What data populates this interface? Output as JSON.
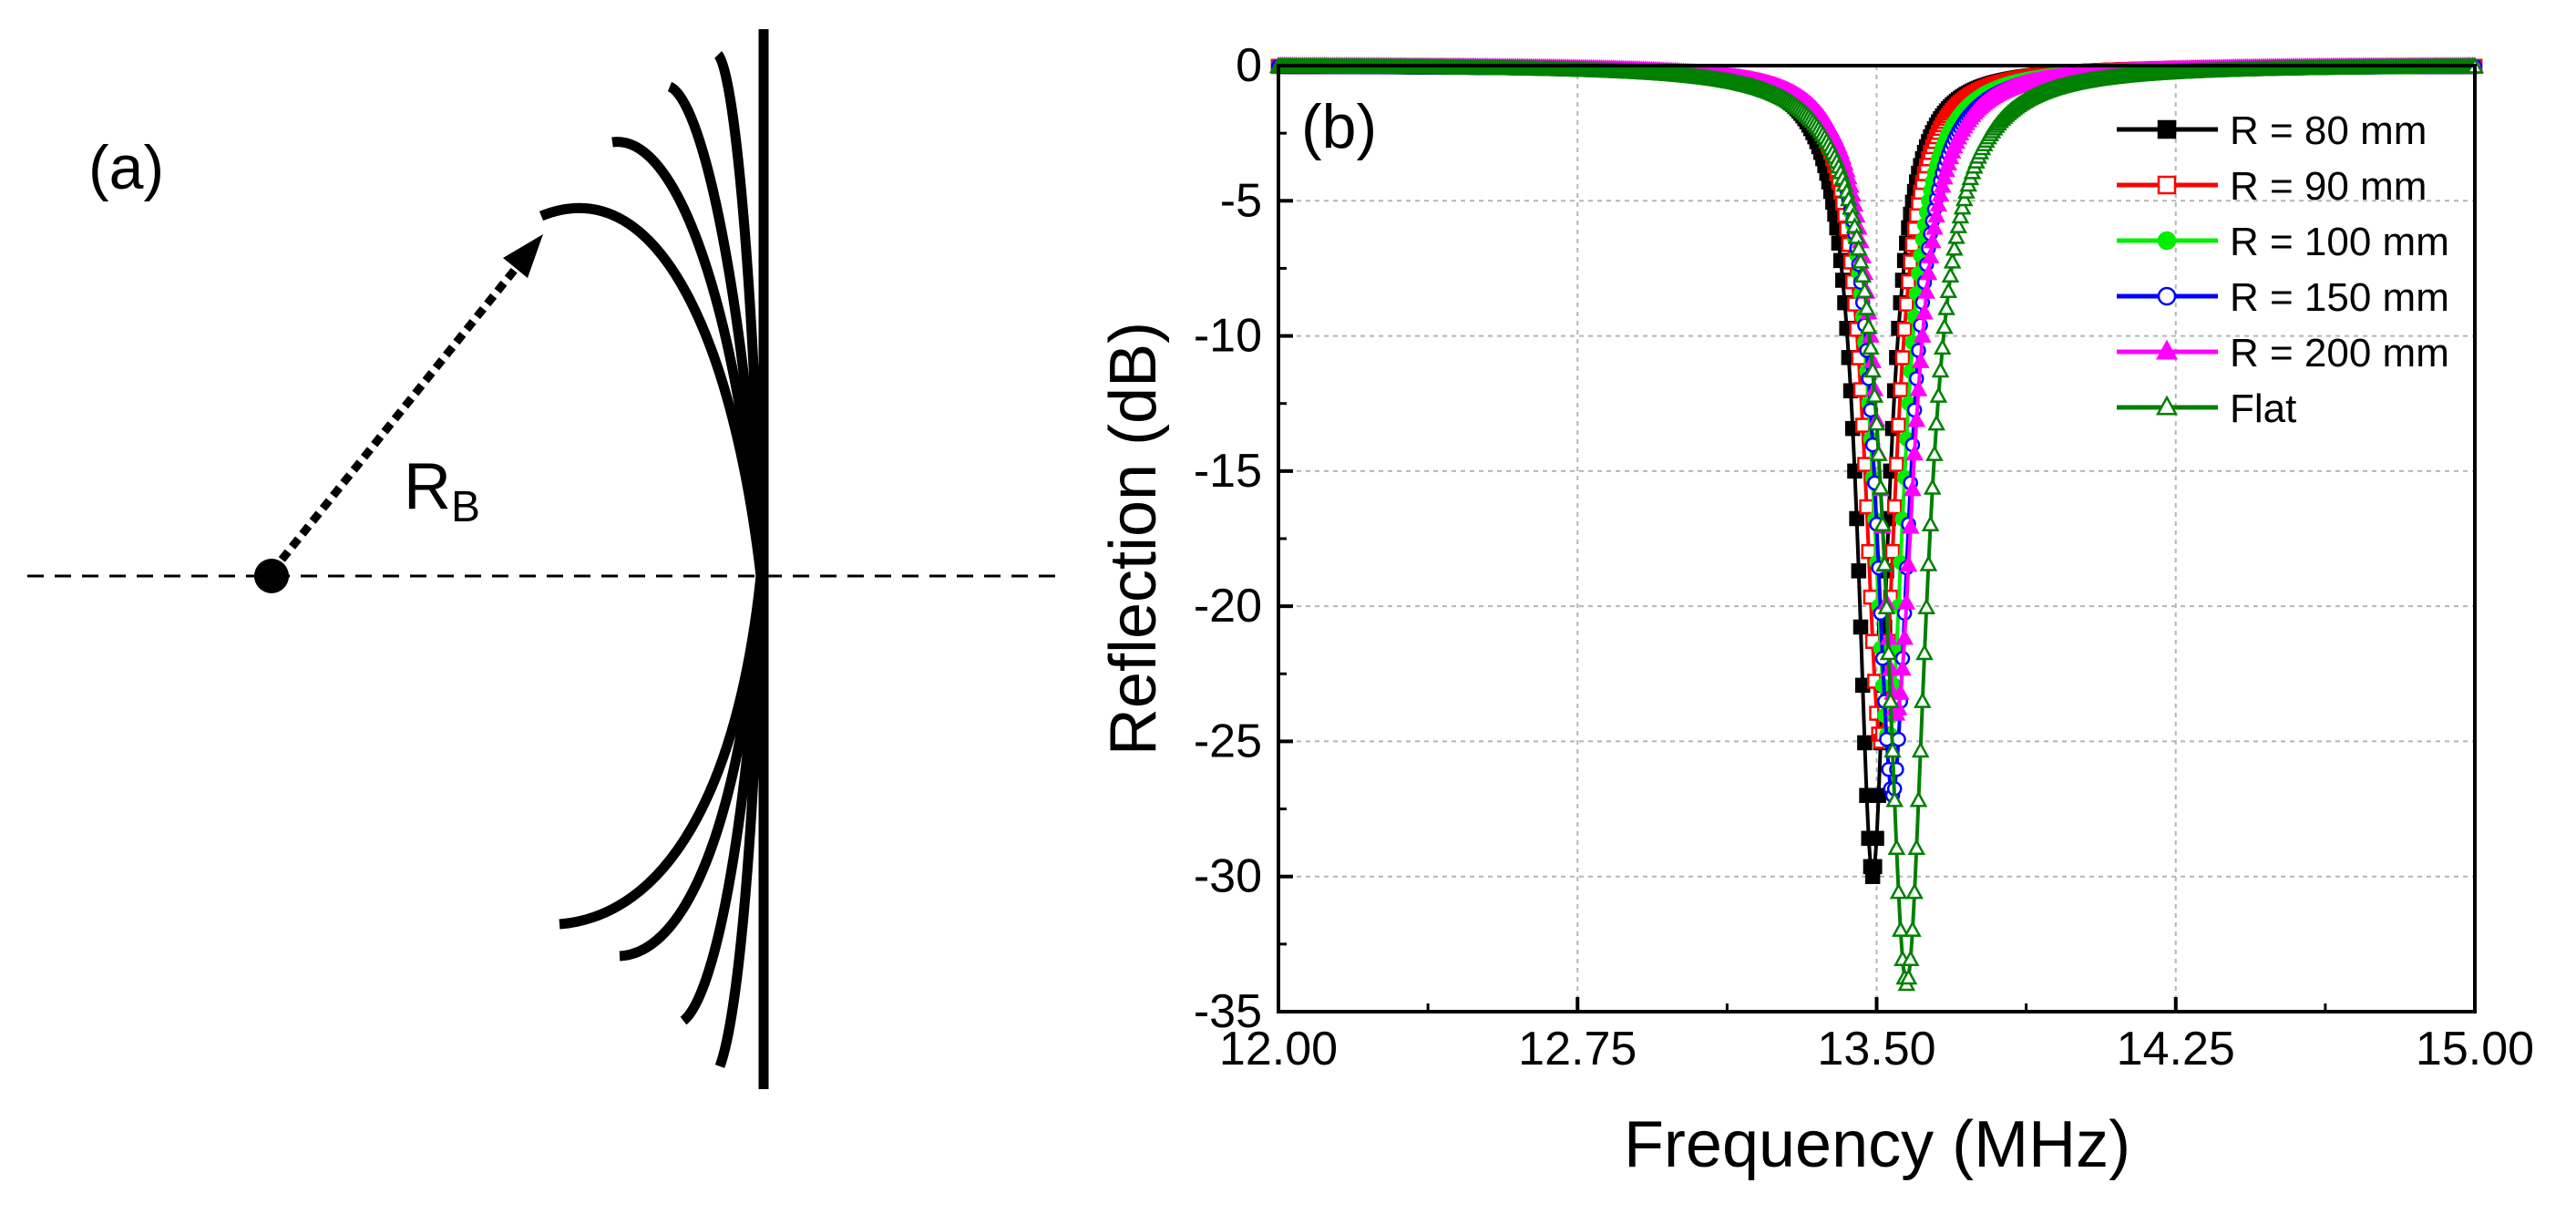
{
  "panel_a": {
    "label": "(a)",
    "radius_symbol": "R",
    "radius_subscript": "B"
  },
  "chart_data": {
    "type": "line",
    "panel_label": "(b)",
    "xlabel": "Frequency (MHz)",
    "ylabel": "Reflection (dB)",
    "xlim": [
      12.0,
      15.0
    ],
    "ylim": [
      -35,
      0
    ],
    "xticks": [
      12.0,
      12.75,
      13.5,
      14.25,
      15.0
    ],
    "xtick_labels": [
      "12.00",
      "12.75",
      "13.50",
      "14.25",
      "15.00"
    ],
    "yticks": [
      0,
      -5,
      -10,
      -15,
      -20,
      -25,
      -30,
      -35
    ],
    "ytick_labels": [
      "0",
      "-5",
      "-10",
      "-15",
      "-20",
      "-25",
      "-30",
      "-35"
    ],
    "grid": true,
    "legend_position": "top-right",
    "series": [
      {
        "name": "R = 80 mm",
        "color": "#000000",
        "marker": "square-filled",
        "f0": 13.49,
        "min_db": -30.0,
        "width": 0.045
      },
      {
        "name": "R = 90 mm",
        "color": "#ff0000",
        "marker": "square-open",
        "f0": 13.51,
        "min_db": -25.0,
        "width": 0.048
      },
      {
        "name": "R = 100 mm",
        "color": "#00ee00",
        "marker": "circle-filled",
        "f0": 13.53,
        "min_db": -25.0,
        "width": 0.05
      },
      {
        "name": "R = 150 mm",
        "color": "#0000ff",
        "marker": "circle-open",
        "f0": 13.54,
        "min_db": -27.0,
        "width": 0.052
      },
      {
        "name": "R = 200 mm",
        "color": "#ff00ff",
        "marker": "triangle-filled",
        "f0": 13.55,
        "min_db": -24.0,
        "width": 0.055
      },
      {
        "name": "Flat",
        "color": "#008000",
        "marker": "triangle-open",
        "f0": 13.575,
        "min_db": -34.0,
        "width": 0.06
      }
    ]
  }
}
